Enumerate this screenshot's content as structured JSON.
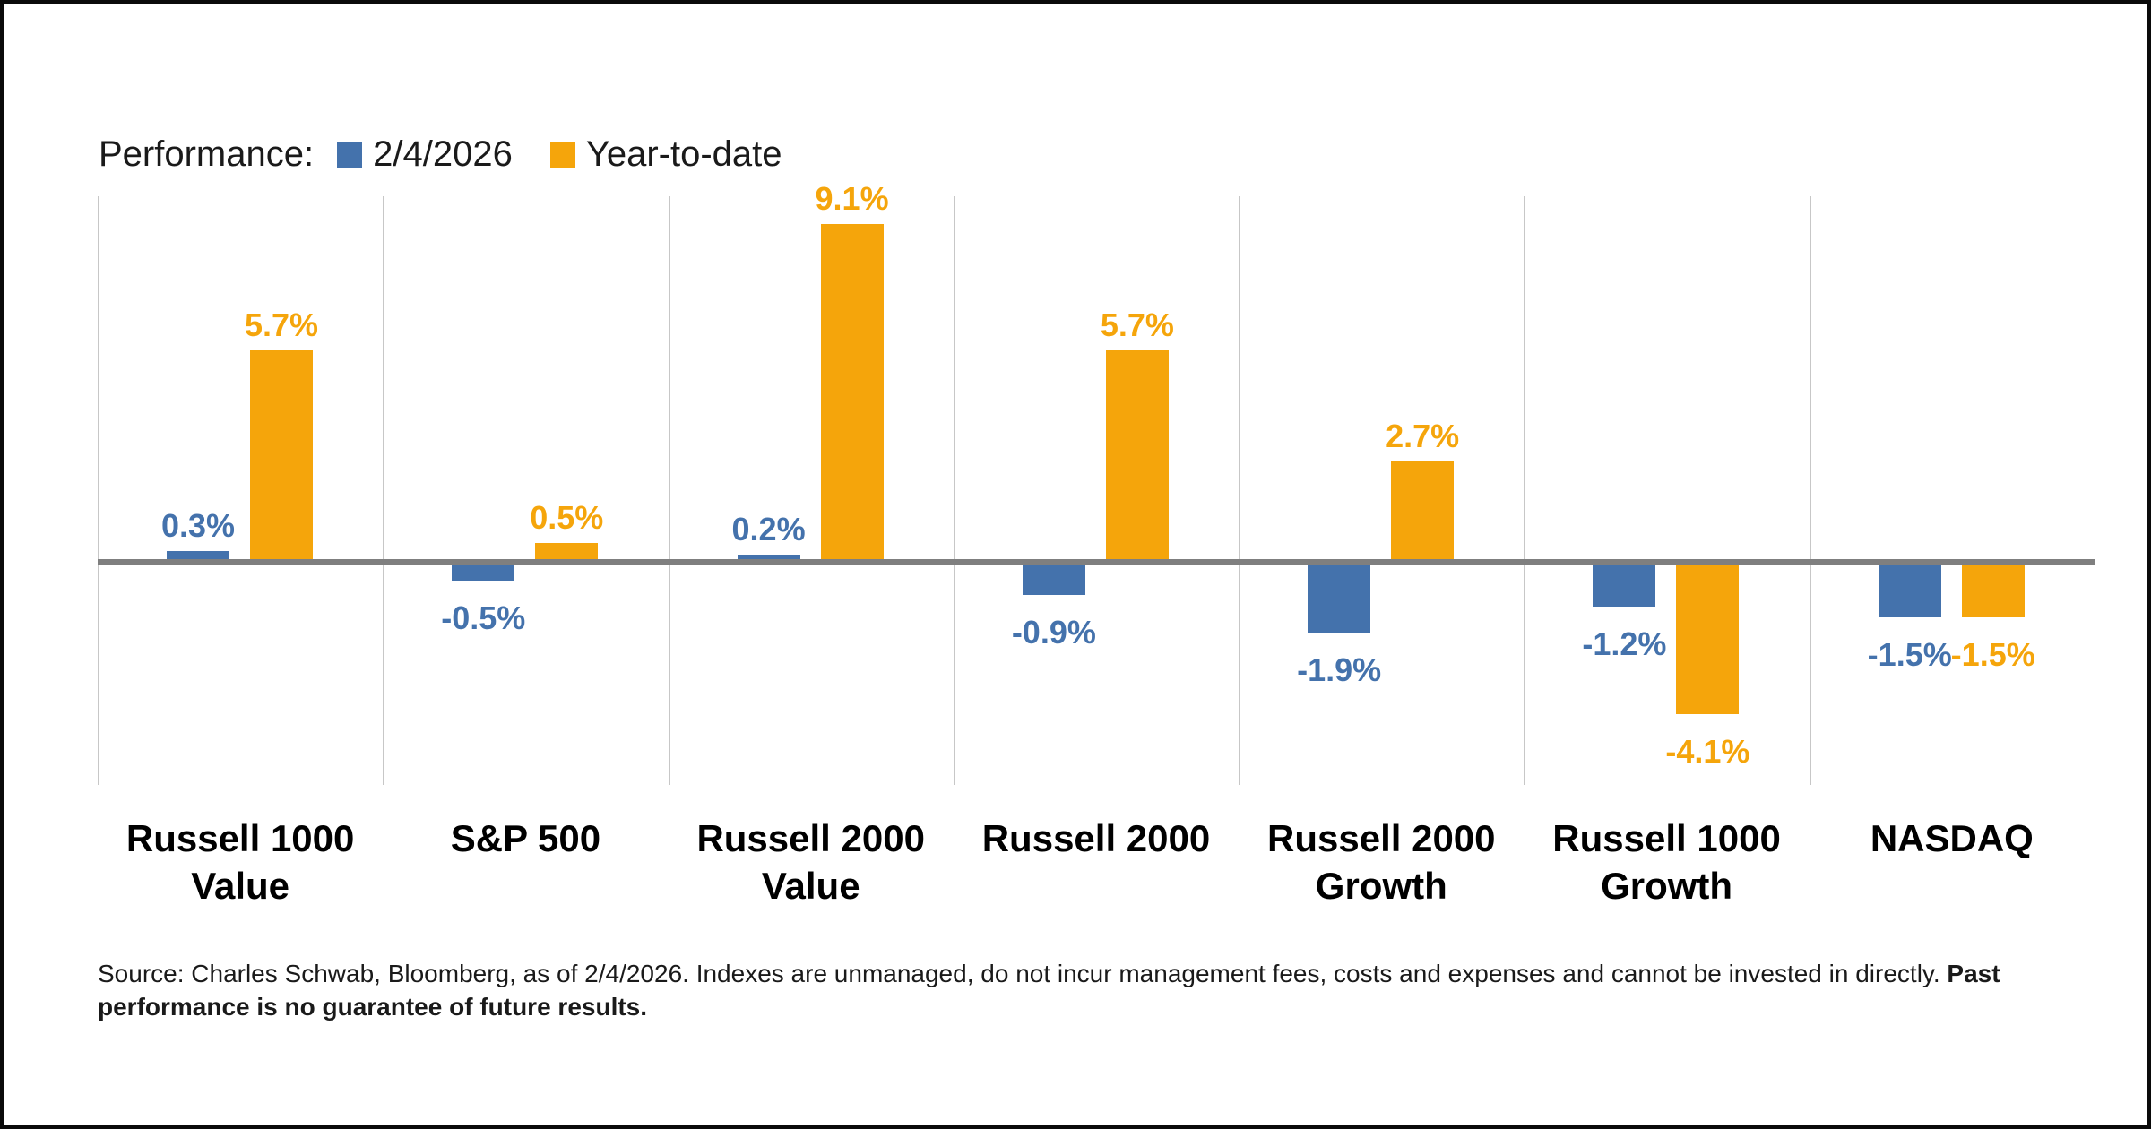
{
  "legend": {
    "title": "Performance:",
    "series": [
      {
        "label": "2/4/2026",
        "color": "#4472AC"
      },
      {
        "label": "Year-to-date",
        "color": "#F5A50B"
      }
    ]
  },
  "chart_data": {
    "type": "bar",
    "title": "",
    "categories": [
      "Russell 1000 Value",
      "S&P 500",
      "Russell 2000 Value",
      "Russell 2000",
      "Russell 2000 Growth",
      "Russell 1000 Growth",
      "NASDAQ"
    ],
    "series": [
      {
        "name": "2/4/2026",
        "color": "#4472AC",
        "values": [
          0.3,
          -0.5,
          0.2,
          -0.9,
          -1.9,
          -1.2,
          -1.5
        ]
      },
      {
        "name": "Year-to-date",
        "color": "#F5A50B",
        "values": [
          5.7,
          0.5,
          9.1,
          5.7,
          2.7,
          -4.1,
          -1.5
        ]
      }
    ],
    "value_suffix": "%",
    "value_labels": true,
    "baseline": 0,
    "ylim": [
      -5.5,
      10
    ],
    "grid": "vertical-category-separators",
    "legend_position": "top-left",
    "axis_color": "#7F7F7F",
    "gridline_color": "#C7C7C7"
  },
  "source": {
    "text_normal": "Source: Charles Schwab, Bloomberg, as of 2/4/2026. Indexes are unmanaged, do not incur management fees, costs and expenses and cannot be invested in directly. ",
    "text_bold": "Past performance is no guarantee of future results."
  }
}
